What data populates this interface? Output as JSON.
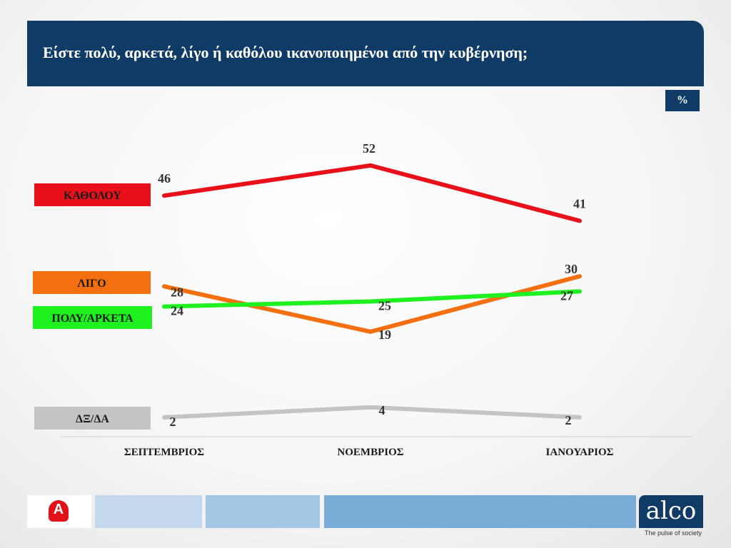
{
  "header": {
    "title": "Είστε πολύ, αρκετά, λίγο ή καθόλου ικανοποιημένοι από την κυβέρνηση;"
  },
  "unit_label": "%",
  "brand": {
    "name": "alco",
    "tagline": "The pulse of society",
    "alpha_mark": "A"
  },
  "chart_data": {
    "type": "line",
    "title": "Είστε πολύ, αρκετά, λίγο ή καθόλου ικανοποιημένοι από την κυβέρνηση;",
    "unit": "%",
    "categories": [
      "ΣΕΠΤΕΜΒΡΙΟΣ",
      "ΝΟΕΜΒΡΙΟΣ",
      "ΙΑΝΟΥΑΡΙΟΣ"
    ],
    "series": [
      {
        "name": "ΚΑΘΟΛΟΥ",
        "values": [
          46,
          52,
          41
        ],
        "color": "#e8111a",
        "label_bg": "#e8111a",
        "label_fg": "#1a1a1a"
      },
      {
        "name": "ΛΙΓΟ",
        "values": [
          28,
          19,
          30
        ],
        "color": "#f46f0f",
        "label_bg": "#f46f0f",
        "label_fg": "#1a1a1a"
      },
      {
        "name": "ΠΟΛΥ/ΑΡΚΕΤΑ",
        "values": [
          24,
          25,
          27
        ],
        "color": "#1ff01f",
        "label_bg": "#1ff01f",
        "label_fg": "#1a1a1a"
      },
      {
        "name": "ΔΞ/ΔΑ",
        "values": [
          2,
          4,
          2
        ],
        "color": "#c4c4c4",
        "label_bg": "#c4c4c4",
        "label_fg": "#1a1a1a"
      }
    ],
    "legend": "left",
    "grid": false
  }
}
